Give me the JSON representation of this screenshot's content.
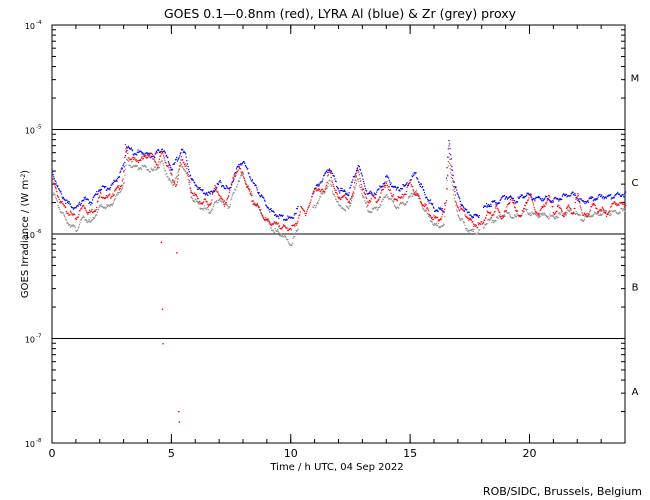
{
  "chart_data": {
    "type": "scatter",
    "title": "GOES 0.1—0.8nm (red), LYRA Al (blue) & Zr (grey) proxy",
    "xlabel": "Time / h UTC, 04 Sep 2022",
    "ylabel_parts": [
      "GOES Irradiance / (W m",
      "-2",
      ")"
    ],
    "credit": "ROB/SIDC, Brussels, Belgium",
    "xlim": [
      0,
      24
    ],
    "x_ticks": [
      {
        "value": 0,
        "label": "0"
      },
      {
        "value": 5,
        "label": "5"
      },
      {
        "value": 10,
        "label": "10"
      },
      {
        "value": 15,
        "label": "15"
      },
      {
        "value": 20,
        "label": "20"
      }
    ],
    "y_scale": "log",
    "ylim_exp": [
      -8,
      -4
    ],
    "y_ticks": [
      {
        "exp": -8,
        "base": "10",
        "sup": "-8"
      },
      {
        "exp": -7,
        "base": "10",
        "sup": "-7"
      },
      {
        "exp": -6,
        "base": "10",
        "sup": "-6"
      },
      {
        "exp": -5,
        "base": "10",
        "sup": "-5"
      },
      {
        "exp": -4,
        "base": "10",
        "sup": "-4"
      }
    ],
    "class_lines_exp": [
      -7,
      -6,
      -5
    ],
    "flare_classes": [
      {
        "label": "A",
        "exp": -7.5
      },
      {
        "label": "B",
        "exp": -6.5
      },
      {
        "label": "C",
        "exp": -5.5
      },
      {
        "label": "M",
        "exp": -4.5
      }
    ],
    "series": [
      {
        "name": "GOES 0.1-0.8nm",
        "color": "#ff0000",
        "offset_exp": 0,
        "x": [
          0,
          0.1,
          0.3,
          0.6,
          1.0,
          1.3,
          1.5,
          1.8,
          2.0,
          2.3,
          2.6,
          2.9,
          3.0,
          3.05,
          3.2,
          3.5,
          3.8,
          4.1,
          4.4,
          4.6,
          4.8,
          5.0,
          5.2,
          5.4,
          5.6,
          5.8,
          6.0,
          6.2,
          6.4,
          6.6,
          6.8,
          7.0,
          7.2,
          7.4,
          7.6,
          7.8,
          8.0,
          8.2,
          8.4,
          8.6,
          8.9,
          9.2,
          9.5,
          9.8,
          10.0,
          10.2,
          10.4,
          10.6,
          10.8,
          11.0,
          11.2,
          11.4,
          11.6,
          11.8,
          12.0,
          12.2,
          12.4,
          12.6,
          12.8,
          13.0,
          13.2,
          13.4,
          13.6,
          13.8,
          14.0,
          14.2,
          14.4,
          14.6,
          14.8,
          15.0,
          15.2,
          15.4,
          15.6,
          15.8,
          16.0,
          16.2,
          16.4,
          16.5,
          16.6,
          16.7,
          16.8,
          16.9,
          17.0,
          17.2,
          17.4,
          17.6,
          17.8,
          18.0,
          18.2,
          18.4,
          18.6,
          18.8,
          19.0,
          19.2,
          19.4,
          19.6,
          19.8,
          20.0,
          20.2,
          20.4,
          20.6,
          20.8,
          21.0,
          21.2,
          21.4,
          21.6,
          21.8,
          22.0,
          22.2,
          22.4,
          22.6,
          22.8,
          23.0,
          23.2,
          23.4,
          23.6,
          23.8,
          24.0
        ],
        "log_y": [
          -5.48,
          -5.55,
          -5.68,
          -5.78,
          -5.85,
          -5.72,
          -5.8,
          -5.76,
          -5.62,
          -5.66,
          -5.6,
          -5.52,
          -5.4,
          -5.17,
          -5.27,
          -5.3,
          -5.28,
          -5.23,
          -5.34,
          -5.22,
          -5.34,
          -5.45,
          -5.55,
          -5.26,
          -5.36,
          -5.58,
          -5.64,
          -5.7,
          -5.69,
          -5.72,
          -5.55,
          -5.62,
          -5.74,
          -5.6,
          -5.45,
          -5.37,
          -5.45,
          -5.58,
          -5.7,
          -5.74,
          -5.86,
          -5.9,
          -5.92,
          -5.95,
          -5.94,
          -5.92,
          -5.76,
          -5.8,
          -5.7,
          -5.55,
          -5.6,
          -5.58,
          -5.4,
          -5.56,
          -5.68,
          -5.62,
          -5.72,
          -5.58,
          -5.38,
          -5.58,
          -5.7,
          -5.64,
          -5.68,
          -5.6,
          -5.5,
          -5.64,
          -5.66,
          -5.66,
          -5.6,
          -5.5,
          -5.62,
          -5.68,
          -5.72,
          -5.82,
          -5.85,
          -5.86,
          -5.8,
          -5.7,
          -5.15,
          -5.4,
          -5.55,
          -5.68,
          -5.75,
          -5.78,
          -5.85,
          -5.9,
          -5.92,
          -5.9,
          -5.8,
          -5.82,
          -5.75,
          -5.84,
          -5.78,
          -5.64,
          -5.78,
          -5.82,
          -5.74,
          -5.6,
          -5.78,
          -5.8,
          -5.72,
          -5.64,
          -5.8,
          -5.74,
          -5.82,
          -5.74,
          -5.8,
          -5.62,
          -5.8,
          -5.84,
          -5.7,
          -5.78,
          -5.76,
          -5.82,
          -5.74,
          -5.7,
          -5.72,
          -5.72
        ]
      },
      {
        "name": "LYRA Al proxy",
        "color": "#0000ff",
        "offset_exp": 0.04,
        "x": [
          0,
          0.3,
          0.6,
          1.0,
          1.3,
          1.6,
          2.0,
          2.4,
          2.8,
          3.0,
          3.1,
          3.4,
          3.8,
          4.2,
          4.6,
          5.0,
          5.4,
          5.6,
          5.8,
          6.2,
          6.6,
          7.0,
          7.4,
          7.8,
          8.0,
          8.4,
          8.8,
          9.2,
          9.6,
          10.0,
          10.4,
          10.8,
          11.2,
          11.6,
          12.0,
          12.4,
          12.8,
          13.2,
          13.6,
          14.0,
          14.4,
          14.8,
          15.2,
          15.6,
          16.0,
          16.4,
          16.6,
          16.8,
          17.0,
          17.4,
          17.8,
          18.2,
          18.6,
          19.0,
          19.4,
          19.8,
          20.2,
          20.6,
          21.0,
          21.4,
          21.8,
          22.2,
          22.6,
          23.0,
          23.4,
          23.8,
          24.0
        ],
        "log_y": [
          -5.45,
          -5.64,
          -5.74,
          -5.8,
          -5.7,
          -5.74,
          -5.6,
          -5.6,
          -5.48,
          -5.38,
          -5.2,
          -5.26,
          -5.26,
          -5.3,
          -5.22,
          -5.42,
          -5.24,
          -5.3,
          -5.52,
          -5.62,
          -5.66,
          -5.55,
          -5.62,
          -5.38,
          -5.35,
          -5.55,
          -5.7,
          -5.84,
          -5.88,
          -5.9,
          -5.75,
          -5.68,
          -5.55,
          -5.4,
          -5.62,
          -5.65,
          -5.38,
          -5.66,
          -5.64,
          -5.5,
          -5.62,
          -5.58,
          -5.46,
          -5.66,
          -5.8,
          -5.82,
          -5.15,
          -5.52,
          -5.7,
          -5.85,
          -5.88,
          -5.76,
          -5.74,
          -5.68,
          -5.72,
          -5.66,
          -5.7,
          -5.7,
          -5.72,
          -5.68,
          -5.66,
          -5.74,
          -5.7,
          -5.68,
          -5.68,
          -5.66,
          -5.66
        ]
      },
      {
        "name": "LYRA Zr proxy",
        "color": "#8c8c8c",
        "offset_exp": -0.04,
        "x": [
          0,
          0.3,
          0.6,
          1.0,
          1.3,
          1.6,
          2.0,
          2.4,
          2.8,
          3.0,
          3.1,
          3.4,
          3.8,
          4.2,
          4.6,
          5.0,
          5.4,
          5.6,
          5.8,
          6.2,
          6.6,
          7.0,
          7.4,
          7.8,
          8.0,
          8.4,
          8.8,
          9.2,
          9.6,
          10.0,
          10.4,
          10.8,
          11.2,
          11.6,
          12.0,
          12.4,
          12.8,
          13.2,
          13.6,
          14.0,
          14.4,
          14.8,
          15.2,
          15.6,
          16.0,
          16.4,
          16.6,
          16.8,
          17.0,
          17.4,
          17.8,
          18.2,
          18.6,
          19.0,
          19.4,
          19.8,
          20.2,
          20.6,
          21.0,
          21.4,
          21.8,
          22.2,
          22.6,
          23.0,
          23.4,
          23.8,
          24.0
        ],
        "log_y": [
          -5.55,
          -5.72,
          -5.84,
          -5.92,
          -5.8,
          -5.86,
          -5.7,
          -5.7,
          -5.56,
          -5.46,
          -5.26,
          -5.32,
          -5.32,
          -5.36,
          -5.28,
          -5.5,
          -5.3,
          -5.36,
          -5.6,
          -5.7,
          -5.74,
          -5.62,
          -5.7,
          -5.44,
          -5.4,
          -5.62,
          -5.78,
          -5.92,
          -5.96,
          -6.06,
          -5.84,
          -5.76,
          -5.62,
          -5.46,
          -5.7,
          -5.72,
          -5.44,
          -5.74,
          -5.72,
          -5.58,
          -5.7,
          -5.66,
          -5.54,
          -5.74,
          -5.88,
          -5.88,
          -5.22,
          -5.6,
          -5.78,
          -5.92,
          -5.95,
          -5.84,
          -5.82,
          -5.76,
          -5.8,
          -5.74,
          -5.78,
          -5.78,
          -5.8,
          -5.76,
          -5.74,
          -5.82,
          -5.78,
          -5.76,
          -5.76,
          -5.74,
          -5.74
        ]
      }
    ],
    "outliers": {
      "name": "GOES isolated samples",
      "color": "#ff0000",
      "x": [
        4.55,
        4.6,
        4.62,
        5.2,
        5.28,
        5.3
      ],
      "log_y": [
        -6.08,
        -6.72,
        -7.05,
        -6.18,
        -7.7,
        -7.8
      ]
    }
  }
}
